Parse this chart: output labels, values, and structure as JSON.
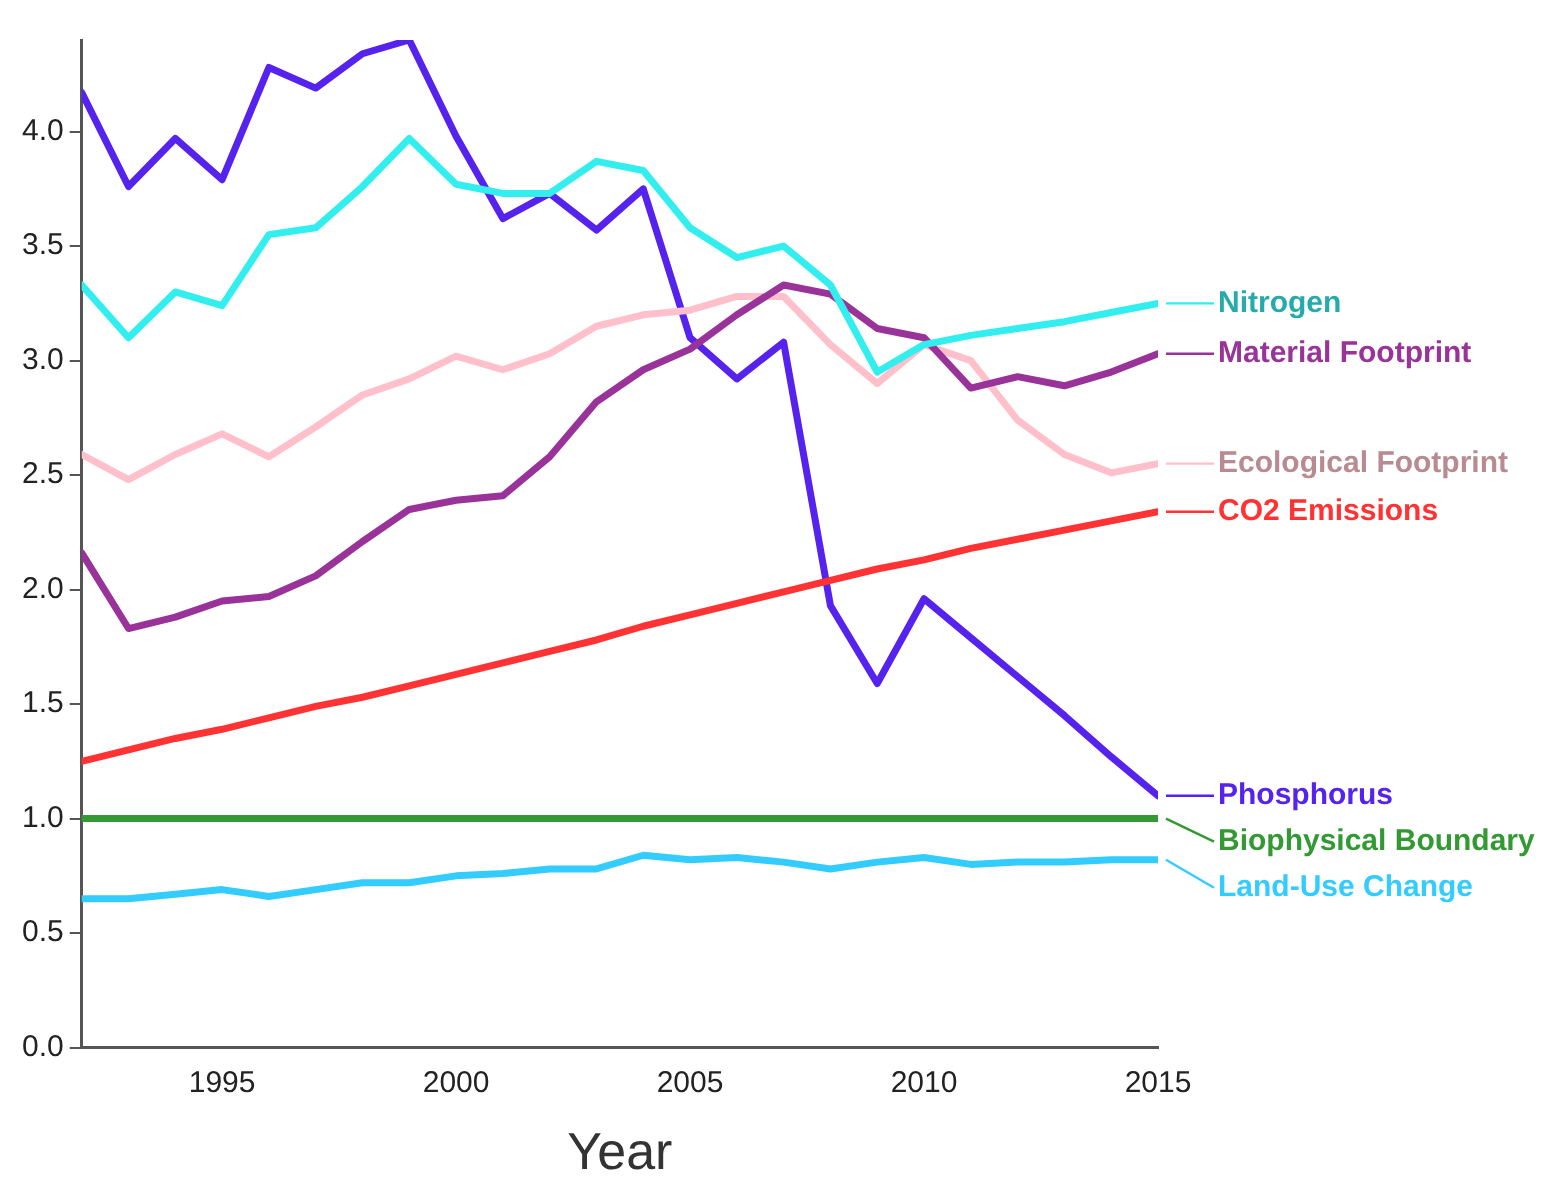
{
  "chart_data": {
    "type": "line",
    "xlabel": "Year",
    "x": [
      1992,
      1993,
      1994,
      1995,
      1996,
      1997,
      1998,
      1999,
      2000,
      2001,
      2002,
      2003,
      2004,
      2005,
      2006,
      2007,
      2008,
      2009,
      2010,
      2011,
      2012,
      2013,
      2014,
      2015
    ],
    "xlim": [
      1992,
      2015
    ],
    "xticks": [
      1995,
      2000,
      2005,
      2010,
      2015
    ],
    "ylim": [
      0,
      4.4
    ],
    "yticks": [
      {
        "value": 0,
        "label": "0.0"
      },
      0.5,
      {
        "value": 1,
        "label": "1.0"
      },
      1.5,
      {
        "value": 2,
        "label": "2.0"
      },
      2.5,
      {
        "value": 3,
        "label": "3.0"
      },
      3.5,
      {
        "value": 4,
        "label": "4.0"
      }
    ],
    "grid": false,
    "legend": "right",
    "marker": "none",
    "line_style": "solid",
    "series": [
      {
        "name": "Nitrogen",
        "color": "#33eeee",
        "values": [
          3.33,
          3.1,
          3.3,
          3.24,
          3.55,
          3.58,
          3.76,
          3.97,
          3.77,
          3.73,
          3.73,
          3.87,
          3.83,
          3.58,
          3.45,
          3.5,
          3.33,
          2.95,
          3.07,
          3.11,
          3.14,
          3.17,
          3.21,
          3.25
        ]
      },
      {
        "name": "Material Footprint",
        "color": "#993399",
        "values": [
          2.16,
          1.83,
          1.88,
          1.95,
          1.97,
          2.06,
          2.21,
          2.35,
          2.39,
          2.41,
          2.58,
          2.82,
          2.96,
          3.05,
          3.2,
          3.33,
          3.29,
          3.14,
          3.1,
          2.88,
          2.93,
          2.89,
          2.95,
          3.03
        ]
      },
      {
        "name": "Ecological Footprint",
        "color": "#ffc0cb",
        "values": [
          2.59,
          2.48,
          2.59,
          2.68,
          2.58,
          2.71,
          2.85,
          2.92,
          3.02,
          2.96,
          3.03,
          3.15,
          3.2,
          3.22,
          3.28,
          3.28,
          3.07,
          2.9,
          3.07,
          3.0,
          2.74,
          2.59,
          2.51,
          2.55
        ]
      },
      {
        "name": "CO2 Emissions",
        "color": "#ff3333",
        "values": [
          1.25,
          1.3,
          1.35,
          1.39,
          1.44,
          1.49,
          1.53,
          1.58,
          1.63,
          1.68,
          1.73,
          1.78,
          1.84,
          1.89,
          1.94,
          1.99,
          2.04,
          2.09,
          2.13,
          2.18,
          2.22,
          2.26,
          2.3,
          2.34
        ]
      },
      {
        "name": "Phosphorus",
        "color": "#5522ee",
        "values": [
          4.17,
          3.76,
          3.97,
          3.79,
          4.28,
          4.19,
          4.34,
          4.4,
          3.98,
          3.62,
          3.73,
          3.57,
          3.75,
          3.1,
          2.92,
          3.08,
          1.93,
          1.59,
          1.96,
          1.79,
          1.62,
          1.45,
          1.27,
          1.1
        ]
      },
      {
        "name": "Biophysical Boundary",
        "color": "#339933",
        "values": [
          1,
          1,
          1,
          1,
          1,
          1,
          1,
          1,
          1,
          1,
          1,
          1,
          1,
          1,
          1,
          1,
          1,
          1,
          1,
          1,
          1,
          1,
          1,
          1
        ]
      },
      {
        "name": "Land-Use Change",
        "color": "#33ccff",
        "values": [
          0.65,
          0.65,
          0.67,
          0.69,
          0.66,
          0.69,
          0.72,
          0.72,
          0.75,
          0.76,
          0.78,
          0.78,
          0.84,
          0.82,
          0.83,
          0.81,
          0.78,
          0.81,
          0.83,
          0.8,
          0.81,
          0.81,
          0.82,
          0.82
        ]
      }
    ]
  }
}
